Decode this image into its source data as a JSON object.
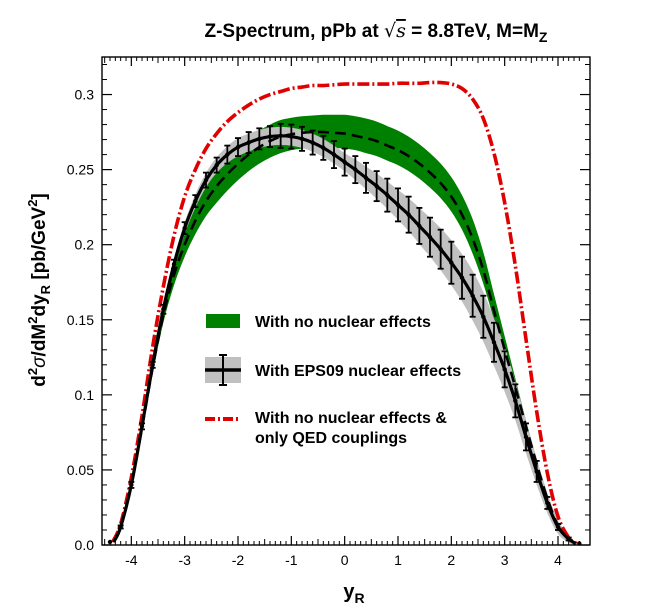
{
  "chart_data": {
    "type": "line",
    "title": {
      "prefix": "Z-Spectrum, pPb at ",
      "sqrt": "s",
      "mid": " = 8.8TeV, M=M",
      "sub": "Z"
    },
    "xlabel": {
      "main": "y",
      "sub": "R"
    },
    "ylabel": {
      "d": "d",
      "sup2a": "2",
      "sigma": "σ",
      "slash": "/dM",
      "sup2b": "2",
      "dy": "dy",
      "sub": "R",
      "units_open": "[pb/GeV",
      "units_sup": "2",
      "units_close": "]"
    },
    "xlim": [
      -4.55,
      4.6
    ],
    "ylim": [
      0,
      0.325
    ],
    "xticks": [
      -4,
      -3,
      -2,
      -1,
      0,
      1,
      2,
      3,
      4
    ],
    "xtick_labels": [
      "-4",
      "-3",
      "-2",
      "-1",
      "0",
      "1",
      "2",
      "3",
      "4"
    ],
    "yticks": [
      0,
      0.05,
      0.1,
      0.15,
      0.2,
      0.25,
      0.3
    ],
    "ytick_labels": [
      "0.0",
      "0.05",
      "0.1",
      "0.15",
      "0.2",
      "0.25",
      "0.3"
    ],
    "legend": [
      {
        "key": "green_band",
        "label": "With no nuclear effects"
      },
      {
        "key": "eps09",
        "label": "With EPS09 nuclear effects"
      },
      {
        "key": "qed_line1",
        "label": "With no nuclear effects &"
      },
      {
        "key": "qed_line2",
        "label": "only QED couplings"
      }
    ],
    "colors": {
      "green_band": "#008000",
      "gray_band": "#c0c0c0",
      "eps09": "#000000",
      "qed": "#e00000"
    },
    "series": {
      "no_nuclear_central": {
        "x": [
          -4.33,
          -4.2,
          -4.0,
          -3.8,
          -3.6,
          -3.4,
          -3.2,
          -3.0,
          -2.8,
          -2.6,
          -2.4,
          -2.2,
          -2.0,
          -1.8,
          -1.6,
          -1.4,
          -1.2,
          -1.0,
          -0.8,
          -0.6,
          -0.4,
          -0.2,
          0.0,
          0.2,
          0.4,
          0.6,
          0.8,
          1.0,
          1.2,
          1.4,
          1.6,
          1.8,
          2.0,
          2.2,
          2.4,
          2.6,
          2.8,
          3.0,
          3.2,
          3.4,
          3.6,
          3.8,
          4.0,
          4.2,
          4.33
        ],
        "y": [
          0.002,
          0.012,
          0.04,
          0.078,
          0.118,
          0.153,
          0.18,
          0.2,
          0.216,
          0.229,
          0.239,
          0.247,
          0.254,
          0.26,
          0.265,
          0.269,
          0.272,
          0.2735,
          0.2745,
          0.275,
          0.275,
          0.2745,
          0.274,
          0.2725,
          0.271,
          0.269,
          0.266,
          0.263,
          0.259,
          0.254,
          0.248,
          0.241,
          0.232,
          0.22,
          0.204,
          0.183,
          0.156,
          0.13,
          0.105,
          0.079,
          0.054,
          0.031,
          0.013,
          0.004,
          0.001
        ]
      },
      "no_nuclear_lower": {
        "x": [
          -4.33,
          -4.2,
          -4.0,
          -3.8,
          -3.6,
          -3.4,
          -3.2,
          -3.0,
          -2.8,
          -2.6,
          -2.4,
          -2.2,
          -2.0,
          -1.8,
          -1.6,
          -1.4,
          -1.2,
          -1.0,
          -0.8,
          -0.6,
          -0.4,
          -0.2,
          0.0,
          0.2,
          0.4,
          0.6,
          0.8,
          1.0,
          1.2,
          1.4,
          1.6,
          1.8,
          2.0,
          2.2,
          2.4,
          2.6,
          2.8,
          3.0,
          3.2,
          3.4,
          3.6,
          3.8,
          4.0,
          4.2,
          4.33
        ],
        "y": [
          0.002,
          0.012,
          0.039,
          0.076,
          0.114,
          0.148,
          0.173,
          0.192,
          0.207,
          0.219,
          0.228,
          0.236,
          0.243,
          0.249,
          0.254,
          0.258,
          0.261,
          0.263,
          0.264,
          0.265,
          0.265,
          0.2645,
          0.264,
          0.263,
          0.261,
          0.259,
          0.256,
          0.253,
          0.249,
          0.244,
          0.238,
          0.231,
          0.222,
          0.21,
          0.194,
          0.174,
          0.15,
          0.126,
          0.102,
          0.077,
          0.052,
          0.03,
          0.012,
          0.004,
          0.001
        ]
      },
      "no_nuclear_upper": {
        "x": [
          -4.33,
          -4.2,
          -4.0,
          -3.8,
          -3.6,
          -3.4,
          -3.2,
          -3.0,
          -2.8,
          -2.6,
          -2.4,
          -2.2,
          -2.0,
          -1.8,
          -1.6,
          -1.4,
          -1.2,
          -1.0,
          -0.8,
          -0.6,
          -0.4,
          -0.2,
          0.0,
          0.2,
          0.4,
          0.6,
          0.8,
          1.0,
          1.2,
          1.4,
          1.6,
          1.8,
          2.0,
          2.2,
          2.4,
          2.6,
          2.8,
          3.0,
          3.2,
          3.4,
          3.6,
          3.8,
          4.0,
          4.2,
          4.33
        ],
        "y": [
          0.002,
          0.012,
          0.041,
          0.08,
          0.122,
          0.158,
          0.187,
          0.208,
          0.225,
          0.239,
          0.25,
          0.258,
          0.265,
          0.271,
          0.276,
          0.28,
          0.283,
          0.2845,
          0.2855,
          0.286,
          0.2865,
          0.2865,
          0.2865,
          0.2855,
          0.284,
          0.282,
          0.279,
          0.276,
          0.272,
          0.267,
          0.261,
          0.254,
          0.245,
          0.233,
          0.217,
          0.195,
          0.167,
          0.139,
          0.111,
          0.083,
          0.057,
          0.033,
          0.014,
          0.004,
          0.001
        ]
      },
      "eps09": {
        "x": [
          -4.33,
          -4.2,
          -4.0,
          -3.8,
          -3.6,
          -3.4,
          -3.2,
          -3.0,
          -2.8,
          -2.6,
          -2.4,
          -2.2,
          -2.0,
          -1.8,
          -1.6,
          -1.4,
          -1.2,
          -1.0,
          -0.8,
          -0.6,
          -0.4,
          -0.2,
          0.0,
          0.2,
          0.4,
          0.6,
          0.8,
          1.0,
          1.2,
          1.4,
          1.6,
          1.8,
          2.0,
          2.2,
          2.4,
          2.6,
          2.8,
          3.0,
          3.2,
          3.4,
          3.6,
          3.8,
          4.0,
          4.2,
          4.33
        ],
        "y": [
          0.002,
          0.012,
          0.04,
          0.079,
          0.12,
          0.157,
          0.187,
          0.211,
          0.229,
          0.243,
          0.253,
          0.26,
          0.265,
          0.268,
          0.2705,
          0.272,
          0.2725,
          0.272,
          0.2705,
          0.268,
          0.2645,
          0.26,
          0.255,
          0.25,
          0.2445,
          0.239,
          0.233,
          0.2265,
          0.22,
          0.2125,
          0.205,
          0.197,
          0.188,
          0.178,
          0.166,
          0.152,
          0.135,
          0.117,
          0.096,
          0.072,
          0.049,
          0.028,
          0.012,
          0.004,
          0.001
        ]
      },
      "eps09_band_halfwidth": {
        "x": [
          -4.33,
          -3.0,
          -2.0,
          -1.0,
          0.0,
          1.0,
          2.0,
          2.5,
          3.0,
          3.5,
          4.33
        ],
        "y": [
          0.001,
          0.004,
          0.006,
          0.006,
          0.006,
          0.01,
          0.015,
          0.017,
          0.015,
          0.01,
          0.001
        ]
      },
      "eps09_errorbars": {
        "x": [
          -4.4,
          -4.2,
          -4.0,
          -3.8,
          -3.6,
          -3.4,
          -3.2,
          -3.0,
          -2.8,
          -2.6,
          -2.4,
          -2.2,
          -2.0,
          -1.8,
          -1.6,
          -1.4,
          -1.2,
          -1.0,
          -0.8,
          -0.6,
          -0.4,
          -0.2,
          0.0,
          0.2,
          0.4,
          0.6,
          0.8,
          1.0,
          1.2,
          1.4,
          1.6,
          1.8,
          2.0,
          2.2,
          2.4,
          2.6,
          2.8,
          3.0,
          3.2,
          3.4,
          3.6,
          3.8,
          4.0,
          4.2,
          4.4
        ],
        "err": [
          0.0,
          0.001,
          0.002,
          0.002,
          0.002,
          0.003,
          0.003,
          0.004,
          0.004,
          0.005,
          0.005,
          0.006,
          0.006,
          0.007,
          0.007,
          0.007,
          0.008,
          0.008,
          0.008,
          0.008,
          0.008,
          0.009,
          0.009,
          0.009,
          0.01,
          0.01,
          0.011,
          0.011,
          0.012,
          0.012,
          0.013,
          0.013,
          0.014,
          0.014,
          0.014,
          0.014,
          0.013,
          0.012,
          0.011,
          0.009,
          0.007,
          0.004,
          0.002,
          0.001,
          0.0
        ]
      },
      "qed": {
        "x": [
          -4.35,
          -4.2,
          -4.0,
          -3.8,
          -3.6,
          -3.4,
          -3.2,
          -3.0,
          -2.8,
          -2.6,
          -2.4,
          -2.2,
          -2.0,
          -1.8,
          -1.6,
          -1.4,
          -1.2,
          -1.0,
          -0.8,
          -0.6,
          -0.4,
          -0.2,
          0.0,
          0.2,
          0.4,
          0.6,
          0.8,
          1.0,
          1.2,
          1.4,
          1.6,
          1.8,
          2.0,
          2.2,
          2.4,
          2.6,
          2.8,
          3.0,
          3.2,
          3.4,
          3.6,
          3.8,
          4.0,
          4.2,
          4.35
        ],
        "y": [
          0.002,
          0.014,
          0.045,
          0.086,
          0.132,
          0.172,
          0.206,
          0.232,
          0.25,
          0.264,
          0.274,
          0.282,
          0.288,
          0.293,
          0.297,
          0.3,
          0.302,
          0.304,
          0.305,
          0.306,
          0.306,
          0.3065,
          0.307,
          0.307,
          0.307,
          0.307,
          0.307,
          0.3075,
          0.3075,
          0.3075,
          0.308,
          0.308,
          0.307,
          0.304,
          0.297,
          0.284,
          0.261,
          0.228,
          0.186,
          0.137,
          0.089,
          0.048,
          0.019,
          0.005,
          0.001
        ]
      }
    }
  }
}
